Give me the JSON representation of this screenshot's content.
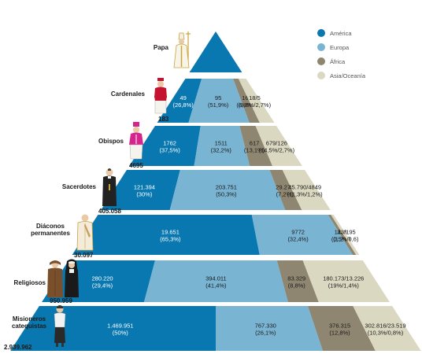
{
  "legend": [
    {
      "label": "América",
      "color": "#0a78b0"
    },
    {
      "label": "Europa",
      "color": "#7ab4d3"
    },
    {
      "label": "África",
      "color": "#8e8670"
    },
    {
      "label": "Asia/Oceanía",
      "color": "#dbd8c1"
    }
  ],
  "chart_data": {
    "type": "table",
    "categories": [
      "Papa",
      "Cardenales",
      "Obispos",
      "Sacerdotes",
      "Diáconos permanentes",
      "Religiosos",
      "Misioneros catequistas"
    ],
    "totals": [
      "",
      "183",
      "4695",
      "405.058",
      "30.097",
      "950.959",
      "2.939.962"
    ],
    "rows": [
      {
        "category": "Papa",
        "label": "Papa",
        "total": "",
        "shares": [],
        "values": []
      },
      {
        "category": "Cardenales",
        "label": "Cardenales",
        "total": "183",
        "shares": [
          26.8,
          51.9,
          8.8,
          12.5
        ],
        "values": [
          {
            "line1": "49",
            "line2": "(26,8%)"
          },
          {
            "line1": "95",
            "line2": "(51,9%)"
          },
          {
            "line1": "16",
            "line2": "(8,8%)"
          },
          {
            "line1": "18/5",
            "line2": "(9,8%/2,7%)"
          }
        ]
      },
      {
        "category": "Obispos",
        "label": "Obispos",
        "total": "4695",
        "shares": [
          37.5,
          32.2,
          13.1,
          17.2
        ],
        "values": [
          {
            "line1": "1762",
            "line2": "(37,5%)"
          },
          {
            "line1": "1511",
            "line2": "(32,2%)"
          },
          {
            "line1": "617",
            "line2": "(13,1%)"
          },
          {
            "line1": "679/126",
            "line2": "(14,5%/2,7%)"
          }
        ]
      },
      {
        "category": "Sacerdotes",
        "label": "Sacerdotes",
        "total": "405.058",
        "shares": [
          30,
          50.3,
          7.2,
          12.5
        ],
        "values": [
          {
            "line1": "121.394",
            "line2": "(30%)"
          },
          {
            "line1": "203.751",
            "line2": "(50,3%)"
          },
          {
            "line1": "29.274",
            "line2": "(7,2%)"
          },
          {
            "line1": "45.790/4849",
            "line2": "(11,3%/1,2%)"
          }
        ]
      },
      {
        "category": "Diáconos permanentes",
        "label": "Diáconos permanentes",
        "total": "30.097",
        "shares": [
          65.3,
          32.4,
          1.2,
          1.1
        ],
        "values": [
          {
            "line1": "19.651",
            "line2": "(65,3%)"
          },
          {
            "line1": "9772",
            "line2": "(32,4%)"
          },
          {
            "line1": "336",
            "line2": "(1,2%)"
          },
          {
            "line1": "143/195",
            "line2": "(0,5%/0,6)"
          }
        ]
      },
      {
        "category": "Religiosos",
        "label": "Religiosos",
        "total": "950.959",
        "shares": [
          29.4,
          41.4,
          8.8,
          20.4
        ],
        "values": [
          {
            "line1": "280.220",
            "line2": "(29,4%)"
          },
          {
            "line1": "394.011",
            "line2": "(41,4%)"
          },
          {
            "line1": "83.329",
            "line2": "(8,8%)"
          },
          {
            "line1": "180.173/13.226",
            "line2": "(19%/1,4%)"
          }
        ]
      },
      {
        "category": "Misioneros catequistas",
        "label": "Misioneros catequistas",
        "total": "2.939.962",
        "shares": [
          50,
          26.1,
          12.8,
          11.1
        ],
        "values": [
          {
            "line1": "1.469.951",
            "line2": "(50%)"
          },
          {
            "line1": "767.330",
            "line2": "(26,1%)"
          },
          {
            "line1": "376.315",
            "line2": "(12,8%)"
          },
          {
            "line1": "302.816/23.519",
            "line2": "(10,3%/0,8%)"
          }
        ]
      }
    ]
  }
}
